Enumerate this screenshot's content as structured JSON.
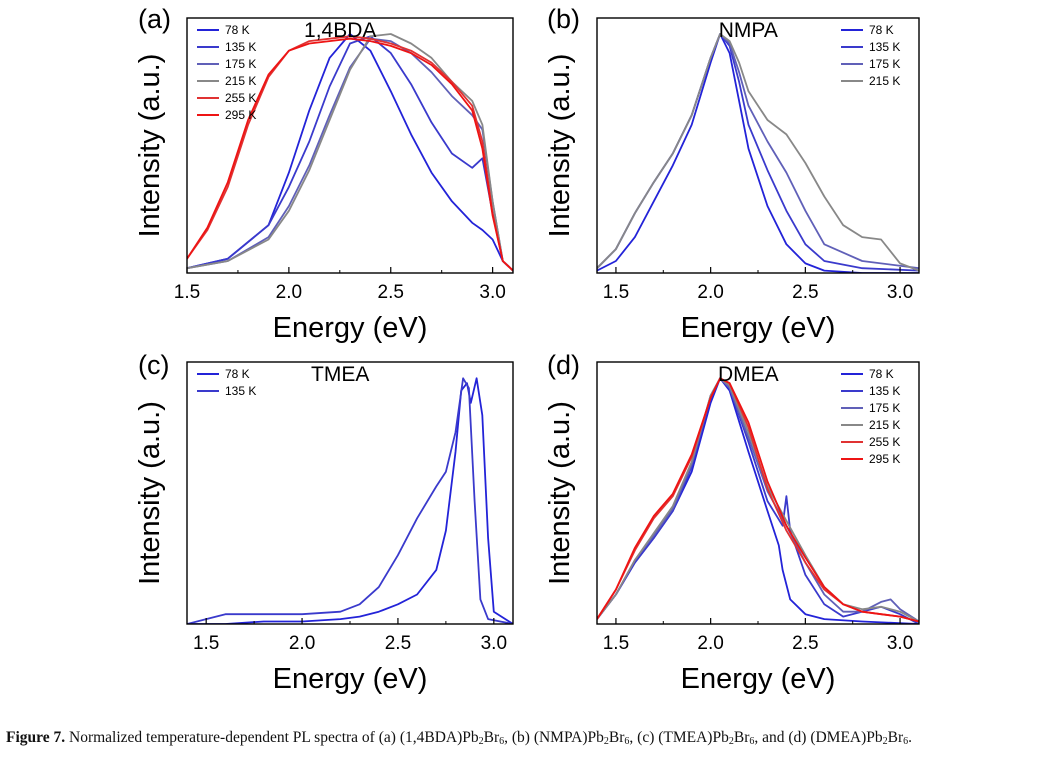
{
  "caption": {
    "figure_label": "Figure 7.",
    "intro": "Normalized temperature-dependent PL spectra of",
    "items": [
      {
        "letter": "(a)",
        "cation": "(1,4BDA)",
        "pb": "Pb",
        "pb_sub": "2",
        "br": "Br",
        "br_sub": "6",
        "sep": ","
      },
      {
        "letter": "(b)",
        "cation": "(NMPA)",
        "pb": "Pb",
        "pb_sub": "2",
        "br": "Br",
        "br_sub": "6",
        "sep": ","
      },
      {
        "letter": "(c)",
        "cation": "(TMEA)",
        "pb": "Pb",
        "pb_sub": "2",
        "br": "Br",
        "br_sub": "6",
        "sep": ", and"
      },
      {
        "letter": "(d)",
        "cation": "(DMEA)",
        "pb": "Pb",
        "pb_sub": "2",
        "br": "Br",
        "br_sub": "6",
        "sep": "."
      }
    ]
  },
  "chart_data": [
    {
      "panel": "(a)",
      "type": "line",
      "title": "1,4BDA",
      "xlabel": "Energy (eV)",
      "ylabel": "Intensity (a.u.)",
      "xlim": [
        1.5,
        3.1
      ],
      "ylim": [
        0,
        1.05
      ],
      "xticks": [
        "1.5",
        "2.0",
        "2.5",
        "3.0"
      ],
      "legend_position": "top-left",
      "series": [
        {
          "name": "78 K",
          "color": "#2323d8",
          "x": [
            1.5,
            1.7,
            1.9,
            2.0,
            2.1,
            2.2,
            2.3,
            2.4,
            2.5,
            2.6,
            2.7,
            2.8,
            2.9,
            2.95,
            3.0,
            3.05,
            3.1
          ],
          "y": [
            0.02,
            0.06,
            0.2,
            0.42,
            0.68,
            0.9,
            1.0,
            0.93,
            0.76,
            0.58,
            0.42,
            0.3,
            0.21,
            0.18,
            0.14,
            0.05,
            0.01
          ]
        },
        {
          "name": "135 K",
          "color": "#3a3acc",
          "x": [
            1.5,
            1.7,
            1.9,
            2.0,
            2.1,
            2.2,
            2.3,
            2.4,
            2.5,
            2.6,
            2.7,
            2.8,
            2.9,
            2.95,
            3.0,
            3.05,
            3.1
          ],
          "y": [
            0.02,
            0.06,
            0.2,
            0.36,
            0.55,
            0.78,
            0.96,
            0.99,
            0.92,
            0.79,
            0.63,
            0.5,
            0.44,
            0.48,
            0.25,
            0.05,
            0.01
          ]
        },
        {
          "name": "175 K",
          "color": "#6060b8",
          "x": [
            1.5,
            1.7,
            1.9,
            2.0,
            2.1,
            2.2,
            2.3,
            2.4,
            2.5,
            2.6,
            2.7,
            2.8,
            2.9,
            2.95,
            3.0,
            3.05,
            3.1
          ],
          "y": [
            0.02,
            0.05,
            0.15,
            0.28,
            0.45,
            0.66,
            0.86,
            0.98,
            0.97,
            0.92,
            0.84,
            0.74,
            0.66,
            0.6,
            0.3,
            0.05,
            0.01
          ]
        },
        {
          "name": "215 K",
          "color": "#888888",
          "x": [
            1.5,
            1.7,
            1.9,
            2.0,
            2.1,
            2.2,
            2.3,
            2.4,
            2.5,
            2.6,
            2.7,
            2.8,
            2.9,
            2.95,
            3.0,
            3.05,
            3.1
          ],
          "y": [
            0.02,
            0.05,
            0.14,
            0.26,
            0.43,
            0.64,
            0.85,
            0.99,
            1.0,
            0.96,
            0.9,
            0.8,
            0.72,
            0.62,
            0.3,
            0.05,
            0.01
          ]
        },
        {
          "name": "255 K",
          "color": "#e03232",
          "x": [
            1.5,
            1.6,
            1.7,
            1.8,
            1.9,
            2.0,
            2.1,
            2.2,
            2.3,
            2.4,
            2.5,
            2.6,
            2.7,
            2.8,
            2.9,
            2.95,
            3.0,
            3.05,
            3.1
          ],
          "y": [
            0.06,
            0.18,
            0.36,
            0.62,
            0.82,
            0.93,
            0.97,
            0.98,
            0.99,
            0.98,
            0.96,
            0.93,
            0.88,
            0.8,
            0.7,
            0.55,
            0.25,
            0.05,
            0.01
          ]
        },
        {
          "name": "295 K",
          "color": "#ee1414",
          "x": [
            1.5,
            1.6,
            1.7,
            1.8,
            1.9,
            2.0,
            2.1,
            2.2,
            2.3,
            2.4,
            2.5,
            2.6,
            2.7,
            2.8,
            2.9,
            2.95,
            3.0,
            3.05,
            3.1
          ],
          "y": [
            0.06,
            0.19,
            0.38,
            0.64,
            0.83,
            0.93,
            0.96,
            0.97,
            0.98,
            0.97,
            0.95,
            0.92,
            0.87,
            0.79,
            0.68,
            0.52,
            0.24,
            0.05,
            0.01
          ]
        }
      ]
    },
    {
      "panel": "(b)",
      "type": "line",
      "title": "NMPA",
      "xlabel": "Energy (eV)",
      "ylabel": "Intensity (a.u.)",
      "xlim": [
        1.4,
        3.1
      ],
      "ylim": [
        0,
        1.05
      ],
      "xticks": [
        "1.5",
        "2.0",
        "2.5",
        "3.0"
      ],
      "legend_position": "top-right",
      "series": [
        {
          "name": "78 K",
          "color": "#2323d8",
          "x": [
            1.4,
            1.5,
            1.6,
            1.7,
            1.8,
            1.9,
            2.0,
            2.05,
            2.1,
            2.15,
            2.2,
            2.3,
            2.4,
            2.5,
            2.6,
            2.8,
            3.1
          ],
          "y": [
            0.01,
            0.05,
            0.15,
            0.3,
            0.45,
            0.62,
            0.88,
            1.0,
            0.92,
            0.72,
            0.52,
            0.28,
            0.12,
            0.04,
            0.01,
            0.0,
            0.0
          ]
        },
        {
          "name": "135 K",
          "color": "#3a3acc",
          "x": [
            1.4,
            1.5,
            1.6,
            1.7,
            1.8,
            1.9,
            2.0,
            2.05,
            2.1,
            2.15,
            2.2,
            2.3,
            2.4,
            2.5,
            2.6,
            2.8,
            3.1
          ],
          "y": [
            0.02,
            0.1,
            0.25,
            0.38,
            0.5,
            0.66,
            0.9,
            1.0,
            0.95,
            0.8,
            0.62,
            0.43,
            0.26,
            0.12,
            0.05,
            0.02,
            0.01
          ]
        },
        {
          "name": "175 K",
          "color": "#6060b8",
          "x": [
            1.4,
            1.5,
            1.6,
            1.7,
            1.8,
            1.9,
            2.0,
            2.05,
            2.1,
            2.15,
            2.2,
            2.3,
            2.4,
            2.5,
            2.6,
            2.8,
            3.1
          ],
          "y": [
            0.02,
            0.1,
            0.25,
            0.38,
            0.5,
            0.66,
            0.9,
            1.0,
            0.96,
            0.84,
            0.7,
            0.55,
            0.42,
            0.26,
            0.12,
            0.05,
            0.02
          ]
        },
        {
          "name": "215 K",
          "color": "#888888",
          "x": [
            1.4,
            1.5,
            1.6,
            1.7,
            1.8,
            1.9,
            2.0,
            2.05,
            2.1,
            2.15,
            2.2,
            2.3,
            2.4,
            2.5,
            2.6,
            2.7,
            2.8,
            2.9,
            3.0,
            3.1
          ],
          "y": [
            0.02,
            0.1,
            0.25,
            0.38,
            0.5,
            0.66,
            0.9,
            1.0,
            0.97,
            0.88,
            0.76,
            0.64,
            0.58,
            0.46,
            0.32,
            0.2,
            0.15,
            0.14,
            0.04,
            0.01
          ]
        }
      ]
    },
    {
      "panel": "(c)",
      "type": "line",
      "title": "TMEA",
      "xlabel": "Energy (eV)",
      "ylabel": "Intensity (a.u.)",
      "xlim": [
        1.4,
        3.1
      ],
      "ylim": [
        0,
        1.05
      ],
      "xticks": [
        "1.5",
        "2.0",
        "2.5",
        "3.0"
      ],
      "legend_position": "top-left",
      "series": [
        {
          "name": "78 K",
          "color": "#2323d8",
          "x": [
            1.4,
            1.6,
            1.8,
            2.0,
            2.2,
            2.3,
            2.4,
            2.5,
            2.6,
            2.7,
            2.75,
            2.8,
            2.83,
            2.86,
            2.88,
            2.91,
            2.94,
            2.97,
            3.0,
            3.1
          ],
          "y": [
            0.0,
            0.0,
            0.01,
            0.01,
            0.02,
            0.03,
            0.05,
            0.08,
            0.12,
            0.22,
            0.38,
            0.7,
            0.95,
            0.98,
            0.9,
            1.0,
            0.85,
            0.35,
            0.05,
            0.0
          ]
        },
        {
          "name": "135 K",
          "color": "#3a3acc",
          "x": [
            1.4,
            1.5,
            1.6,
            1.8,
            2.0,
            2.2,
            2.3,
            2.4,
            2.5,
            2.6,
            2.7,
            2.75,
            2.8,
            2.84,
            2.87,
            2.9,
            2.93,
            2.97,
            3.1
          ],
          "y": [
            0.0,
            0.02,
            0.04,
            0.04,
            0.04,
            0.05,
            0.08,
            0.15,
            0.28,
            0.43,
            0.56,
            0.62,
            0.78,
            1.0,
            0.96,
            0.5,
            0.1,
            0.02,
            0.0
          ]
        }
      ]
    },
    {
      "panel": "(d)",
      "type": "line",
      "title": "DMEA",
      "xlabel": "Energy (eV)",
      "ylabel": "Intensity (a.u.)",
      "xlim": [
        1.4,
        3.1
      ],
      "ylim": [
        0,
        1.05
      ],
      "xticks": [
        "1.5",
        "2.0",
        "2.5",
        "3.0"
      ],
      "legend_position": "top-right",
      "series": [
        {
          "name": "78 K",
          "color": "#2323d8",
          "x": [
            1.4,
            1.5,
            1.6,
            1.7,
            1.8,
            1.9,
            2.0,
            2.05,
            2.1,
            2.2,
            2.3,
            2.36,
            2.38,
            2.42,
            2.5,
            2.6,
            2.8,
            3.1
          ],
          "y": [
            0.02,
            0.12,
            0.25,
            0.35,
            0.46,
            0.62,
            0.9,
            1.0,
            0.95,
            0.7,
            0.46,
            0.32,
            0.22,
            0.1,
            0.04,
            0.02,
            0.01,
            0.0
          ]
        },
        {
          "name": "135 K",
          "color": "#3a3acc",
          "x": [
            1.4,
            1.5,
            1.6,
            1.7,
            1.8,
            1.9,
            2.0,
            2.05,
            2.1,
            2.2,
            2.3,
            2.38,
            2.4,
            2.42,
            2.5,
            2.6,
            2.7,
            2.9,
            3.0,
            3.1
          ],
          "y": [
            0.02,
            0.12,
            0.25,
            0.35,
            0.46,
            0.64,
            0.92,
            1.0,
            0.96,
            0.74,
            0.5,
            0.4,
            0.52,
            0.38,
            0.2,
            0.08,
            0.03,
            0.07,
            0.04,
            0.0
          ]
        },
        {
          "name": "175 K",
          "color": "#6060b8",
          "x": [
            1.4,
            1.5,
            1.6,
            1.7,
            1.8,
            1.9,
            2.0,
            2.05,
            2.1,
            2.2,
            2.3,
            2.4,
            2.5,
            2.6,
            2.7,
            2.8,
            2.9,
            2.95,
            3.0,
            3.1
          ],
          "y": [
            0.02,
            0.12,
            0.26,
            0.36,
            0.47,
            0.65,
            0.93,
            1.0,
            0.96,
            0.76,
            0.54,
            0.4,
            0.25,
            0.12,
            0.05,
            0.05,
            0.09,
            0.1,
            0.06,
            0.01
          ]
        },
        {
          "name": "215 K",
          "color": "#888888",
          "x": [
            1.4,
            1.5,
            1.6,
            1.7,
            1.8,
            1.9,
            2.0,
            2.05,
            2.1,
            2.2,
            2.3,
            2.4,
            2.5,
            2.6,
            2.7,
            2.8,
            2.9,
            3.0,
            3.1
          ],
          "y": [
            0.02,
            0.12,
            0.26,
            0.37,
            0.48,
            0.66,
            0.93,
            1.0,
            0.97,
            0.78,
            0.56,
            0.42,
            0.28,
            0.15,
            0.08,
            0.06,
            0.07,
            0.05,
            0.01
          ]
        },
        {
          "name": "255 K",
          "color": "#e03232",
          "x": [
            1.4,
            1.5,
            1.6,
            1.7,
            1.8,
            1.9,
            2.0,
            2.05,
            2.1,
            2.2,
            2.3,
            2.4,
            2.5,
            2.6,
            2.7,
            2.8,
            2.9,
            3.0,
            3.1
          ],
          "y": [
            0.02,
            0.14,
            0.3,
            0.43,
            0.52,
            0.68,
            0.92,
            1.0,
            0.98,
            0.8,
            0.55,
            0.38,
            0.25,
            0.14,
            0.08,
            0.05,
            0.04,
            0.03,
            0.01
          ]
        },
        {
          "name": "295 K",
          "color": "#ee1414",
          "x": [
            1.4,
            1.5,
            1.6,
            1.7,
            1.8,
            1.9,
            2.0,
            2.05,
            2.1,
            2.2,
            2.3,
            2.4,
            2.5,
            2.6,
            2.7,
            2.8,
            2.9,
            3.0,
            3.1
          ],
          "y": [
            0.02,
            0.14,
            0.31,
            0.44,
            0.53,
            0.69,
            0.92,
            1.0,
            0.98,
            0.82,
            0.58,
            0.4,
            0.27,
            0.15,
            0.08,
            0.05,
            0.04,
            0.03,
            0.01
          ]
        }
      ]
    }
  ]
}
